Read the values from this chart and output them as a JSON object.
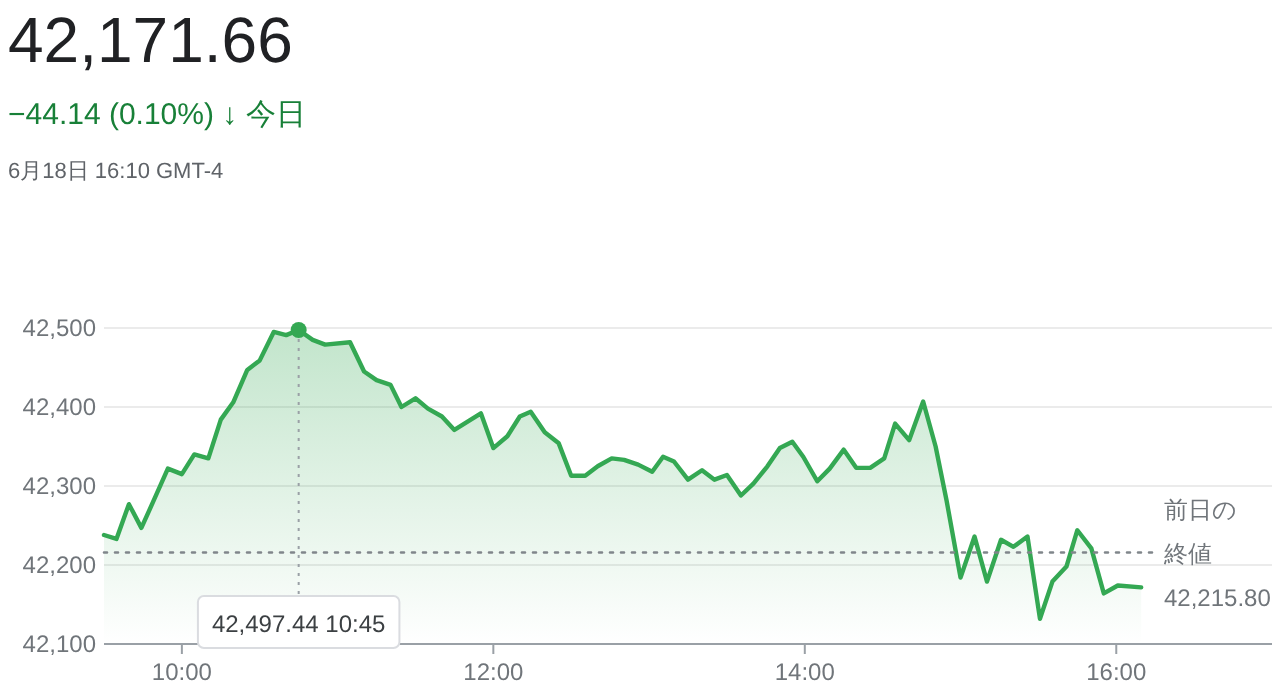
{
  "chart_data": {
    "type": "area",
    "title": "42,171.66",
    "subtitle": "−44.14 (0.10%) ↓ 今日",
    "annotations": [
      "6月18日 16:10 GMT-4",
      {
        "text": "42,497.44 10:45",
        "x": 10.75,
        "y": 42497.44
      }
    ],
    "series": [
      {
        "color": "#34a853",
        "x": [
          9.5,
          9.58,
          9.66,
          9.74,
          9.82,
          9.91,
          10.0,
          10.08,
          10.17,
          10.25,
          10.33,
          10.42,
          10.5,
          10.59,
          10.67,
          10.75,
          10.84,
          10.92,
          11.08,
          11.17,
          11.25,
          11.34,
          11.41,
          11.5,
          11.58,
          11.67,
          11.75,
          11.84,
          11.92,
          12.0,
          12.09,
          12.17,
          12.24,
          12.33,
          12.42,
          12.5,
          12.59,
          12.67,
          12.76,
          12.84,
          12.93,
          13.02,
          13.09,
          13.16,
          13.25,
          13.34,
          13.42,
          13.5,
          13.59,
          13.67,
          13.76,
          13.84,
          13.92,
          13.99,
          14.08,
          14.16,
          14.25,
          14.33,
          14.42,
          14.51,
          14.58,
          14.67,
          14.76,
          14.84,
          14.91,
          15.0,
          15.09,
          15.17,
          15.26,
          15.34,
          15.43,
          15.51,
          15.59,
          15.68,
          15.75,
          15.84,
          15.92,
          16.01,
          16.16
        ],
        "values": [
          42238,
          42233,
          42277,
          42247,
          42282,
          42322,
          42315,
          42340,
          42335,
          42384,
          42406,
          42447,
          42459,
          42495,
          42491,
          42497.44,
          42485,
          42479,
          42482,
          42445,
          42434,
          42428,
          42400,
          42411,
          42398,
          42388,
          42371,
          42382,
          42392,
          42348,
          42363,
          42388,
          42394,
          42368,
          42354,
          42313,
          42313,
          42325,
          42335,
          42333,
          42327,
          42318,
          42337,
          42331,
          42308,
          42320,
          42308,
          42314,
          42288,
          42303,
          42325,
          42348,
          42356,
          42337,
          42306,
          42322,
          42346,
          42323,
          42323,
          42335,
          42379,
          42358,
          42407,
          42350,
          42282,
          42184,
          42236,
          42179,
          42232,
          42223,
          42236,
          42132,
          42179,
          42198,
          42244,
          42221,
          42164,
          42174,
          42171.66
        ]
      }
    ],
    "xlim": [
      9.5,
      17
    ],
    "xticks": [
      {
        "value": 10,
        "label": "10:00"
      },
      {
        "value": 12,
        "label": "12:00"
      },
      {
        "value": 14,
        "label": "14:00"
      },
      {
        "value": 16,
        "label": "16:00"
      }
    ],
    "ylim": [
      42100,
      42500
    ],
    "yticks": [
      {
        "value": 42100,
        "label": "42,100"
      },
      {
        "value": 42200,
        "label": "42,200"
      },
      {
        "value": 42300,
        "label": "42,300"
      },
      {
        "value": 42400,
        "label": "42,400"
      },
      {
        "value": 42500,
        "label": "42,500"
      }
    ],
    "ref_lines": [
      {
        "axis": "y",
        "value": 42215.8,
        "label": "前日の終値 42,215.80",
        "line_style": "dotted"
      }
    ],
    "grid": "y"
  }
}
